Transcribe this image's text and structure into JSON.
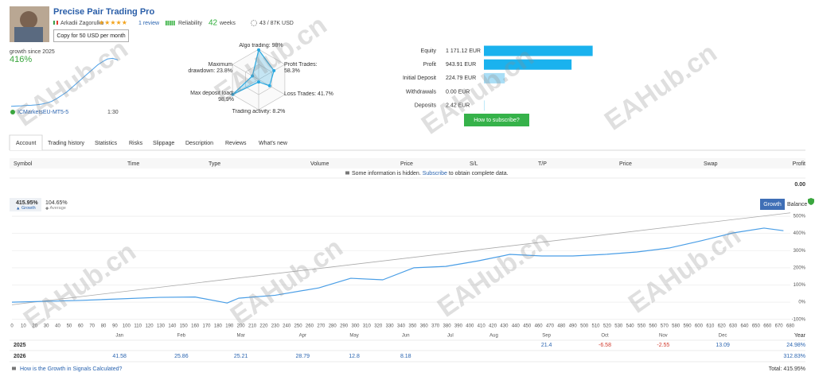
{
  "header": {
    "title": "Precise Pair Trading Pro",
    "author": "Arkadii Zagorulko",
    "reviews": "1 review",
    "reliability": "Reliability",
    "weeks_count": "42",
    "weeks": "weeks",
    "subscribers": "43 / 87K USD",
    "copy_button": "Copy for 50 USD per month"
  },
  "summary": {
    "growth_label": "growth since 2025",
    "growth": "416%",
    "broker": "ICMarketsEU-MT5-5",
    "leverage": "1:30",
    "subscribe_button": "How to subscribe?"
  },
  "tabs": [
    "Account",
    "Trading history",
    "Statistics",
    "Risks",
    "Slippage",
    "Description",
    "Reviews",
    "What's new"
  ],
  "positions": {
    "columns": [
      "Symbol",
      "Time",
      "Type",
      "Volume",
      "Price",
      "S/L",
      "T/P",
      "Price",
      "Swap",
      "Profit"
    ],
    "notice": "Some information is hidden.",
    "notice_link": "Subscribe",
    "notice_end": "to obtain complete data.",
    "profit_total": "0.00"
  },
  "growth_panel": {
    "growth_value": "415.95%",
    "average_value": "104.65%",
    "buttons": [
      "Growth",
      "Balance"
    ]
  },
  "chart_data": [
    {
      "type": "line",
      "x": [
        0,
        1,
        2,
        3,
        4,
        5,
        6,
        7,
        8,
        9,
        10,
        11,
        12,
        13,
        14,
        15,
        16,
        17,
        18,
        19,
        20,
        21
      ],
      "values": [
        0,
        3,
        5,
        8,
        10,
        14,
        20,
        30,
        45,
        70,
        100,
        130,
        170,
        210,
        250,
        290,
        330,
        370,
        400,
        425,
        430,
        416
      ],
      "xlim": [
        0,
        21
      ],
      "ylim": [
        -30,
        440
      ],
      "color": "#4a9ee6"
    },
    {
      "type": "radar",
      "labels": [
        "Algo trading: 98%",
        "Profit Trades: 58.3%",
        "Loss Trades: 41.7%",
        "Trading activity: 8.2%",
        "Max deposit load: 98.9%",
        "Maximum drawdown: 23.8%"
      ],
      "values": [
        98,
        58.3,
        41.7,
        8.2,
        98.9,
        23.8
      ],
      "ylim": [
        0,
        100
      ],
      "color": "#29a8e0"
    },
    {
      "type": "hbar",
      "categories": [
        "Equity",
        "Profit",
        "Initial Deposit",
        "Withdrawals",
        "Deposits"
      ],
      "values": [
        1171.12,
        943.91,
        224.79,
        0,
        2.42
      ],
      "value_labels": [
        "1 171.12 EUR",
        "943.91 EUR",
        "224.79 EUR",
        "0.00 EUR",
        "2.42 EUR"
      ],
      "colors": [
        "#1ab2ee",
        "#1ab2ee",
        "#a9def6",
        "#1ab2ee",
        "#1ab2ee"
      ],
      "xlim": [
        0,
        1200
      ]
    },
    {
      "type": "line",
      "xlim": [
        0,
        680
      ],
      "ylim": [
        -106,
        528
      ],
      "xticks": [
        0,
        10,
        20,
        30,
        40,
        50,
        60,
        70,
        80,
        90,
        100,
        110,
        120,
        130,
        140,
        150,
        160,
        170,
        180,
        190,
        200,
        210,
        220,
        230,
        240,
        250,
        260,
        270,
        280,
        290,
        300,
        310,
        320,
        330,
        340,
        350,
        360,
        370,
        380,
        390,
        400,
        410,
        420,
        430,
        440,
        450,
        460,
        470,
        480,
        490,
        500,
        510,
        520,
        530,
        540,
        550,
        560,
        570,
        580,
        590,
        600,
        610,
        620,
        630,
        640,
        650,
        660,
        670,
        680
      ],
      "yticks": [
        {
          "value": 500,
          "label": "500%"
        },
        {
          "value": 400,
          "label": "400%"
        },
        {
          "value": 300,
          "label": "300%"
        },
        {
          "value": 200,
          "label": "200%"
        },
        {
          "value": 100,
          "label": "100%"
        },
        {
          "value": 0,
          "label": "0%"
        },
        {
          "value": -100,
          "label": "-100%"
        }
      ],
      "month_ticks": [
        {
          "value": 94,
          "label": "Jan"
        },
        {
          "value": 148,
          "label": "Feb"
        },
        {
          "value": 200,
          "label": "Mar"
        },
        {
          "value": 254,
          "label": "Apr"
        },
        {
          "value": 299,
          "label": "May"
        },
        {
          "value": 344,
          "label": "Jun"
        },
        {
          "value": 383,
          "label": "Jul"
        },
        {
          "value": 421,
          "label": "Aug"
        },
        {
          "value": 467,
          "label": "Sep"
        },
        {
          "value": 518,
          "label": "Oct"
        },
        {
          "value": 569,
          "label": "Nov"
        },
        {
          "value": 621,
          "label": "Dec"
        }
      ],
      "grid": true,
      "series": [
        {
          "name": "Growth",
          "color": "#4a9ee6",
          "x": [
            0,
            59,
            129,
            160,
            188,
            198,
            230,
            268,
            296,
            324,
            351,
            379,
            407,
            435,
            463,
            490,
            518,
            546,
            574,
            602,
            630,
            657,
            674
          ],
          "values": [
            0,
            10,
            28,
            30,
            -5,
            23,
            40,
            83,
            139,
            130,
            200,
            208,
            240,
            278,
            269,
            269,
            278,
            292,
            315,
            357,
            403,
            431,
            416
          ]
        },
        {
          "name": "Average",
          "color": "#aaaaaa",
          "x": [
            0,
            680
          ],
          "values": [
            -15,
            520
          ]
        }
      ]
    }
  ],
  "year_table": {
    "header": "Year",
    "rows": [
      {
        "year": "2025",
        "cells": [
          null,
          null,
          null,
          null,
          null,
          null,
          null,
          null,
          21.4,
          -6.58,
          -2.55,
          13.09
        ],
        "total": "24.98%"
      },
      {
        "year": "2026",
        "cells": [
          41.58,
          25.86,
          25.21,
          28.79,
          12.8,
          8.18,
          null,
          null,
          null,
          null,
          null,
          null
        ],
        "total": "312.83%"
      }
    ]
  },
  "footer": {
    "link": "How is the Growth in Signals Calculated?",
    "total": "Total: 415.95%"
  },
  "watermark": "EAHub.cn"
}
